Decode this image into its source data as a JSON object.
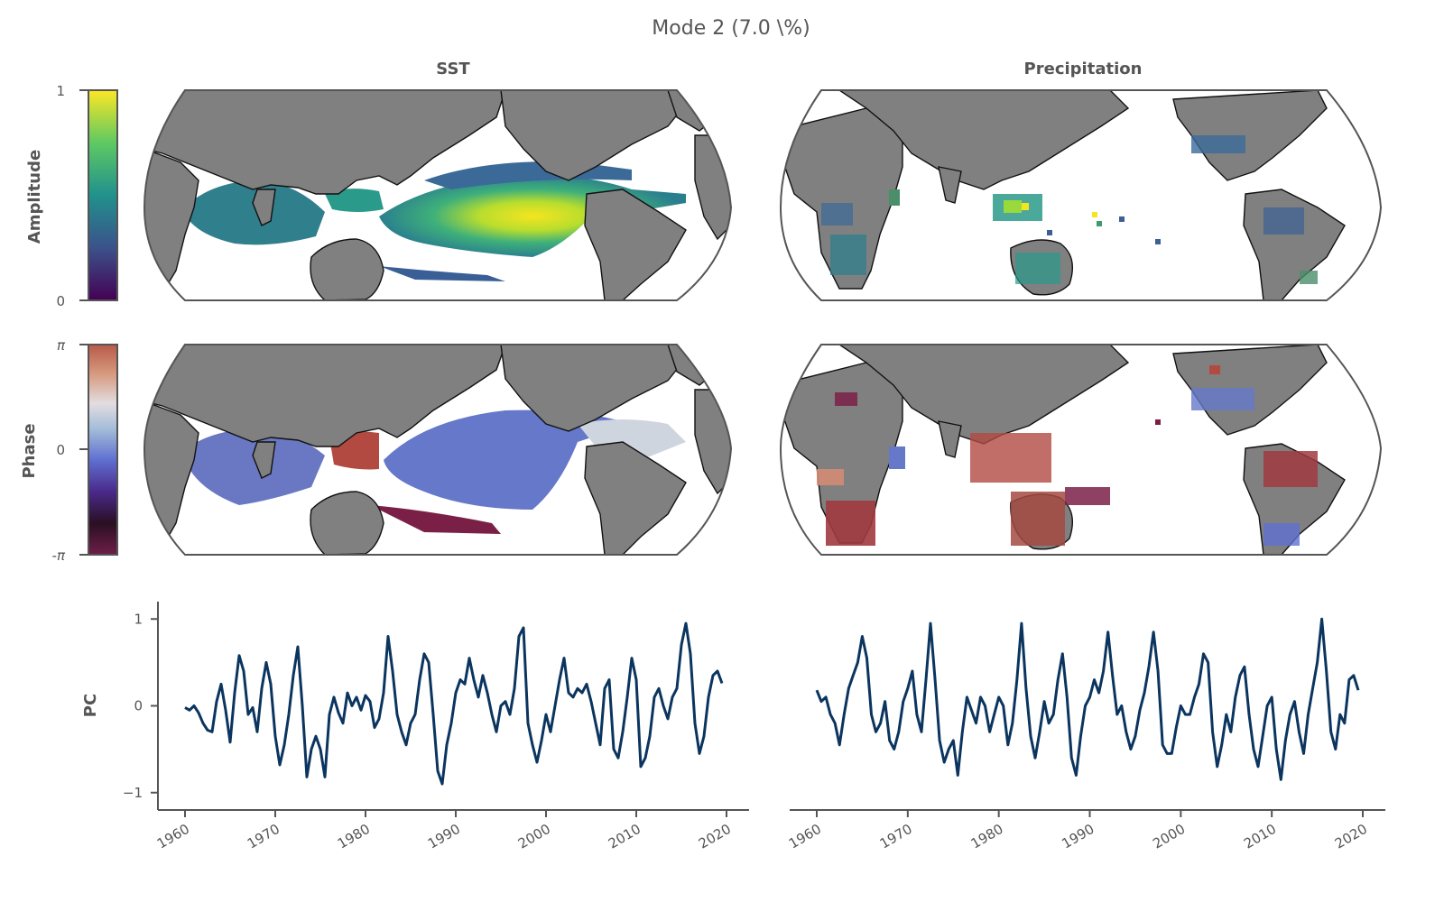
{
  "figure": {
    "title": "Mode 2 (7.0 \\%)",
    "col_titles": [
      "SST",
      "Precipitation"
    ]
  },
  "colorbars": {
    "amplitude": {
      "label": "Amplitude",
      "ticks": [
        "1",
        "0"
      ],
      "range": [
        0,
        1
      ],
      "cmap": "viridis",
      "colors": [
        "#440154",
        "#3b528b",
        "#21918c",
        "#5ec962",
        "#fde725"
      ]
    },
    "phase": {
      "label": "Phase",
      "ticks": [
        "π",
        "0",
        "-π"
      ],
      "range": [
        -3.14159,
        3.14159
      ],
      "cmap": "twilight_shifted",
      "colors": [
        "#6e1f48",
        "#2a0f22",
        "#4a2a8a",
        "#5f6fd0",
        "#a4bdd8",
        "#e2dde0",
        "#d79a7f",
        "#b85a48"
      ]
    }
  },
  "maps": {
    "land_color": "#808080",
    "amp_colors": {
      "high": "#f5e51f",
      "mid_high": "#9ad93c",
      "mid": "#2a9a8a",
      "low": "#3b5f96"
    },
    "phase_colors": {
      "blue": "#6578c9",
      "red": "#b24a42",
      "maroon": "#7a2046",
      "light": "#cfd5df",
      "salmon": "#d18b74"
    }
  },
  "chart_data": [
    {
      "type": "line",
      "title": "SST",
      "ylabel": "PC",
      "xlim": [
        1959,
        2022
      ],
      "ylim": [
        -1.2,
        1.2
      ],
      "xticks": [
        "1960",
        "1970",
        "1980",
        "1990",
        "2000",
        "2010",
        "2020"
      ],
      "yticks": [
        "1",
        "0",
        "−1"
      ],
      "yticks_values": [
        1,
        0,
        -1
      ],
      "series": [
        {
          "name": "PC",
          "x": [
            1960.0,
            1960.5,
            1961.0,
            1961.5,
            1962.0,
            1962.5,
            1963.0,
            1963.5,
            1964.0,
            1964.5,
            1965.0,
            1965.5,
            1966.0,
            1966.5,
            1967.0,
            1967.5,
            1968.0,
            1968.5,
            1969.0,
            1969.5,
            1970.0,
            1970.5,
            1971.0,
            1971.5,
            1972.0,
            1972.5,
            1973.0,
            1973.5,
            1974.0,
            1974.5,
            1975.0,
            1975.5,
            1976.0,
            1976.5,
            1977.0,
            1977.5,
            1978.0,
            1978.5,
            1979.0,
            1979.5,
            1980.0,
            1980.5,
            1981.0,
            1981.5,
            1982.0,
            1982.5,
            1983.0,
            1983.5,
            1984.0,
            1984.5,
            1985.0,
            1985.5,
            1986.0,
            1986.5,
            1987.0,
            1987.5,
            1988.0,
            1988.5,
            1989.0,
            1989.5,
            1990.0,
            1990.5,
            1991.0,
            1991.5,
            1992.0,
            1992.5,
            1993.0,
            1993.5,
            1994.0,
            1994.5,
            1995.0,
            1995.5,
            1996.0,
            1996.5,
            1997.0,
            1997.5,
            1998.0,
            1998.5,
            1999.0,
            1999.5,
            2000.0,
            2000.5,
            2001.0,
            2001.5,
            2002.0,
            2002.5,
            2003.0,
            2003.5,
            2004.0,
            2004.5,
            2005.0,
            2005.5,
            2006.0,
            2006.5,
            2007.0,
            2007.5,
            2008.0,
            2008.5,
            2009.0,
            2009.5,
            2010.0,
            2010.5,
            2011.0,
            2011.5,
            2012.0,
            2012.5,
            2013.0,
            2013.5,
            2014.0,
            2014.5,
            2015.0,
            2015.5,
            2016.0,
            2016.5,
            2017.0,
            2017.5,
            2018.0,
            2018.5,
            2019.0,
            2019.5
          ],
          "y": [
            -0.02,
            -0.05,
            0.0,
            -0.08,
            -0.2,
            -0.28,
            -0.3,
            0.05,
            0.25,
            -0.05,
            -0.42,
            0.15,
            0.58,
            0.4,
            -0.1,
            -0.02,
            -0.3,
            0.2,
            0.5,
            0.25,
            -0.35,
            -0.68,
            -0.45,
            -0.1,
            0.35,
            0.68,
            0.0,
            -0.82,
            -0.5,
            -0.35,
            -0.5,
            -0.82,
            -0.1,
            0.1,
            -0.08,
            -0.2,
            0.15,
            0.0,
            0.1,
            -0.05,
            0.12,
            0.05,
            -0.25,
            -0.15,
            0.15,
            0.8,
            0.4,
            -0.1,
            -0.3,
            -0.45,
            -0.2,
            -0.1,
            0.3,
            0.6,
            0.5,
            -0.1,
            -0.75,
            -0.9,
            -0.45,
            -0.2,
            0.15,
            0.3,
            0.25,
            0.55,
            0.3,
            0.1,
            0.35,
            0.15,
            -0.1,
            -0.3,
            0.0,
            0.05,
            -0.1,
            0.2,
            0.8,
            0.9,
            -0.2,
            -0.45,
            -0.65,
            -0.4,
            -0.1,
            -0.3,
            0.0,
            0.3,
            0.55,
            0.15,
            0.1,
            0.2,
            0.15,
            0.25,
            0.05,
            -0.2,
            -0.45,
            0.2,
            0.3,
            -0.5,
            -0.6,
            -0.3,
            0.1,
            0.55,
            0.3,
            -0.7,
            -0.6,
            -0.35,
            0.1,
            0.2,
            0.0,
            -0.15,
            0.1,
            0.2,
            0.7,
            0.95,
            0.6,
            -0.2,
            -0.55,
            -0.35,
            0.1,
            0.35,
            0.4,
            0.26
          ]
        }
      ]
    },
    {
      "type": "line",
      "title": "Precipitation",
      "ylabel": "",
      "xlim": [
        1959,
        2022
      ],
      "ylim": [
        -1.2,
        1.2
      ],
      "xticks": [
        "1960",
        "1970",
        "1980",
        "1990",
        "2000",
        "2010",
        "2020"
      ],
      "series": [
        {
          "name": "PC",
          "x": [
            1960.0,
            1960.5,
            1961.0,
            1961.5,
            1962.0,
            1962.5,
            1963.0,
            1963.5,
            1964.0,
            1964.5,
            1965.0,
            1965.5,
            1966.0,
            1966.5,
            1967.0,
            1967.5,
            1968.0,
            1968.5,
            1969.0,
            1969.5,
            1970.0,
            1970.5,
            1971.0,
            1971.5,
            1972.0,
            1972.5,
            1973.0,
            1973.5,
            1974.0,
            1974.5,
            1975.0,
            1975.5,
            1976.0,
            1976.5,
            1977.0,
            1977.5,
            1978.0,
            1978.5,
            1979.0,
            1979.5,
            1980.0,
            1980.5,
            1981.0,
            1981.5,
            1982.0,
            1982.5,
            1983.0,
            1983.5,
            1984.0,
            1984.5,
            1985.0,
            1985.5,
            1986.0,
            1986.5,
            1987.0,
            1987.5,
            1988.0,
            1988.5,
            1989.0,
            1989.5,
            1990.0,
            1990.5,
            1991.0,
            1991.5,
            1992.0,
            1992.5,
            1993.0,
            1993.5,
            1994.0,
            1994.5,
            1995.0,
            1995.5,
            1996.0,
            1996.5,
            1997.0,
            1997.5,
            1998.0,
            1998.5,
            1999.0,
            1999.5,
            2000.0,
            2000.5,
            2001.0,
            2001.5,
            2002.0,
            2002.5,
            2003.0,
            2003.5,
            2004.0,
            2004.5,
            2005.0,
            2005.5,
            2006.0,
            2006.5,
            2007.0,
            2007.5,
            2008.0,
            2008.5,
            2009.0,
            2009.5,
            2010.0,
            2010.5,
            2011.0,
            2011.5,
            2012.0,
            2012.5,
            2013.0,
            2013.5,
            2014.0,
            2014.5,
            2015.0,
            2015.5,
            2016.0,
            2016.5,
            2017.0,
            2017.5,
            2018.0,
            2018.5,
            2019.0,
            2019.5
          ],
          "y": [
            0.18,
            0.05,
            0.1,
            -0.1,
            -0.2,
            -0.45,
            -0.1,
            0.2,
            0.35,
            0.5,
            0.8,
            0.55,
            -0.1,
            -0.3,
            -0.2,
            0.05,
            -0.4,
            -0.5,
            -0.3,
            0.05,
            0.2,
            0.4,
            -0.1,
            -0.3,
            0.3,
            0.95,
            0.3,
            -0.4,
            -0.65,
            -0.5,
            -0.4,
            -0.8,
            -0.3,
            0.1,
            -0.05,
            -0.2,
            0.1,
            0.0,
            -0.3,
            -0.1,
            0.1,
            0.0,
            -0.45,
            -0.2,
            0.3,
            0.95,
            0.2,
            -0.35,
            -0.6,
            -0.3,
            0.05,
            -0.2,
            -0.1,
            0.3,
            0.6,
            0.1,
            -0.6,
            -0.8,
            -0.35,
            0.0,
            0.1,
            0.3,
            0.15,
            0.4,
            0.85,
            0.35,
            -0.1,
            0.0,
            -0.3,
            -0.5,
            -0.35,
            -0.05,
            0.15,
            0.45,
            0.85,
            0.4,
            -0.45,
            -0.55,
            -0.55,
            -0.25,
            0.0,
            -0.1,
            -0.1,
            0.1,
            0.25,
            0.6,
            0.5,
            -0.3,
            -0.7,
            -0.45,
            -0.1,
            -0.3,
            0.1,
            0.35,
            0.45,
            -0.1,
            -0.5,
            -0.7,
            -0.35,
            0.0,
            0.1,
            -0.5,
            -0.85,
            -0.4,
            -0.1,
            0.05,
            -0.3,
            -0.55,
            -0.1,
            0.2,
            0.5,
            1.0,
            0.4,
            -0.3,
            -0.5,
            -0.1,
            -0.2,
            0.3,
            0.35,
            0.18
          ]
        }
      ]
    }
  ]
}
